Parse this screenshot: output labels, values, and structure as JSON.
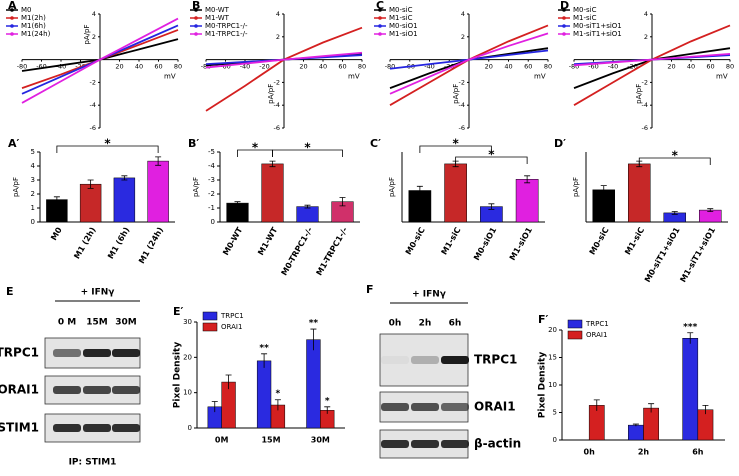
{
  "chart_data": [
    {
      "type": "line",
      "panel": "A",
      "x": [
        -80,
        -40,
        0,
        40,
        80
      ],
      "xlabel": "mV",
      "ylabel": "pA/pF",
      "xlim": [
        -80,
        80
      ],
      "ylim": [
        -6,
        4
      ],
      "xticks": [
        -80,
        -60,
        -40,
        -20,
        20,
        40,
        60,
        80
      ],
      "yticks": [
        4,
        2,
        -2,
        -4,
        -6
      ],
      "legend": "upper left",
      "series": [
        {
          "name": "M0",
          "color": "#000000",
          "values": [
            -1,
            -0.5,
            0,
            0.9,
            1.8
          ]
        },
        {
          "name": "M1(2h)",
          "color": "#d42020",
          "values": [
            -2.5,
            -1.3,
            0,
            1.3,
            2.6
          ]
        },
        {
          "name": "M1(6h)",
          "color": "#2525e0",
          "values": [
            -3,
            -1.5,
            0,
            1.5,
            3
          ]
        },
        {
          "name": "M1(24h)",
          "color": "#e020e0",
          "values": [
            -3.8,
            -1.9,
            0,
            1.8,
            3.6
          ]
        }
      ]
    },
    {
      "type": "line",
      "panel": "B",
      "x": [
        -80,
        -40,
        0,
        40,
        80
      ],
      "xlabel": "mV",
      "ylabel": "pA/pF",
      "xlim": [
        -80,
        80
      ],
      "ylim": [
        -6,
        4
      ],
      "xticks": [
        -80,
        -60,
        -40,
        -20,
        20,
        40,
        60,
        80
      ],
      "yticks": [
        4,
        2,
        -2,
        -4,
        -6
      ],
      "legend": "upper left",
      "series": [
        {
          "name": "M0-WT",
          "color": "#000000",
          "values": [
            -0.5,
            -0.25,
            0,
            0.25,
            0.5
          ]
        },
        {
          "name": "M1-WT",
          "color": "#d42020",
          "values": [
            -4.5,
            -2.3,
            0,
            1.5,
            2.8
          ]
        },
        {
          "name": "M0-TRPC1-/-",
          "color": "#2525e0",
          "values": [
            -0.4,
            -0.2,
            0,
            0.2,
            0.4
          ]
        },
        {
          "name": "M1-TRPC1-/-",
          "color": "#e020e0",
          "values": [
            -0.7,
            -0.35,
            0,
            0.3,
            0.6
          ]
        }
      ]
    },
    {
      "type": "line",
      "panel": "C",
      "x": [
        -80,
        -40,
        0,
        40,
        80
      ],
      "xlabel": "mV",
      "ylabel": "pA/pF",
      "xlim": [
        -80,
        80
      ],
      "ylim": [
        -6,
        4
      ],
      "xticks": [
        -80,
        -60,
        -40,
        -20,
        20,
        40,
        60,
        80
      ],
      "yticks": [
        4,
        2,
        -2,
        -4,
        -6
      ],
      "legend": "upper left",
      "series": [
        {
          "name": "M0-siC",
          "color": "#000000",
          "values": [
            -2.5,
            -1.2,
            0,
            0.5,
            1
          ]
        },
        {
          "name": "M1-siC",
          "color": "#d42020",
          "values": [
            -4,
            -2,
            0,
            1.6,
            3
          ]
        },
        {
          "name": "M0-siO1",
          "color": "#2525e0",
          "values": [
            -0.8,
            -0.4,
            0,
            0.4,
            0.8
          ]
        },
        {
          "name": "M1-siO1",
          "color": "#e020e0",
          "values": [
            -3,
            -1.5,
            0,
            1.2,
            2.3
          ]
        }
      ]
    },
    {
      "type": "line",
      "panel": "D",
      "x": [
        -80,
        -40,
        0,
        40,
        80
      ],
      "xlabel": "mV",
      "ylabel": "pA/pF",
      "xlim": [
        -80,
        80
      ],
      "ylim": [
        -6,
        4
      ],
      "xticks": [
        -80,
        -60,
        -40,
        -20,
        20,
        40,
        60,
        80
      ],
      "yticks": [
        4,
        2,
        -2,
        -4,
        -6
      ],
      "legend": "upper left",
      "series": [
        {
          "name": "M0-siC",
          "color": "#000000",
          "values": [
            -2.5,
            -1.2,
            0,
            0.5,
            1
          ]
        },
        {
          "name": "M1-siC",
          "color": "#d42020",
          "values": [
            -4,
            -2,
            0,
            1.6,
            3
          ]
        },
        {
          "name": "M0-siT1+siO1",
          "color": "#2525e0",
          "values": [
            -0.4,
            -0.2,
            0,
            0.2,
            0.4
          ]
        },
        {
          "name": "M1-siT1+siO1",
          "color": "#e020e0",
          "values": [
            -0.5,
            -0.25,
            0,
            0.25,
            0.5
          ]
        }
      ]
    },
    {
      "type": "bar",
      "panel": "A′",
      "ylabel": "pA/pF",
      "categories": [
        "M0",
        "M1 (2h)",
        "M1 (6h)",
        "M1 (24h)"
      ],
      "values": [
        1.6,
        2.7,
        3.15,
        4.35
      ],
      "errors": [
        0.2,
        0.3,
        0.15,
        0.3
      ],
      "colors": [
        "#000000",
        "#c62828",
        "#2a2ae0",
        "#e020e0"
      ],
      "ylim": [
        0,
        5
      ],
      "yticks": [
        0,
        1,
        2,
        3,
        4,
        5
      ],
      "annotations": [
        "*"
      ]
    },
    {
      "type": "bar",
      "panel": "B′",
      "ylabel": "pA/pF",
      "categories": [
        "M0-WT",
        "M1-WT",
        "M0-TRPC1-/-",
        "M1-TRPC1-/-"
      ],
      "values": [
        -1.35,
        -4.15,
        -1.1,
        -1.45
      ],
      "errors": [
        0.1,
        0.2,
        0.1,
        0.3
      ],
      "colors": [
        "#000000",
        "#c62828",
        "#2a2ae0",
        "#d0306a"
      ],
      "ylim": [
        0,
        -5
      ],
      "yticks": [
        0,
        -1,
        -2,
        -3,
        -4,
        -5
      ],
      "annotations": [
        "*",
        "*"
      ]
    },
    {
      "type": "bar",
      "panel": "C′",
      "ylabel": "pA/pF",
      "categories": [
        "M0-siC",
        "M1-siC",
        "M0-siO1",
        "M1-siO1"
      ],
      "values": [
        -2.25,
        -4.15,
        -1.1,
        -3.05
      ],
      "errors": [
        0.3,
        0.2,
        0.2,
        0.25
      ],
      "colors": [
        "#000000",
        "#c62828",
        "#2a2ae0",
        "#e020e0"
      ],
      "ylim": [
        0,
        -5
      ],
      "annotations": [
        "*",
        "*"
      ]
    },
    {
      "type": "bar",
      "panel": "D′",
      "ylabel": "pA/pF",
      "categories": [
        "M0-siC",
        "M1-siC",
        "M0-siT1+siO1",
        "M1-siT1+siO1"
      ],
      "values": [
        -2.3,
        -4.15,
        -0.65,
        -0.85
      ],
      "errors": [
        0.3,
        0.2,
        0.1,
        0.1
      ],
      "colors": [
        "#000000",
        "#c62828",
        "#2a2ae0",
        "#e020e0"
      ],
      "ylim": [
        0,
        -5
      ],
      "annotations": [
        "*"
      ]
    },
    {
      "type": "blot",
      "panel": "E",
      "treatment": "+ IFNγ",
      "lanes": [
        "0 M",
        "15M",
        "30M"
      ],
      "rows": [
        "TRPC1",
        "ORAI1",
        "STIM1"
      ],
      "footer": "IP: STIM1"
    },
    {
      "type": "grouped",
      "panel": "E′",
      "ylabel": "Pixel Density",
      "categories": [
        "0M",
        "15M",
        "30M"
      ],
      "ylim": [
        0,
        30
      ],
      "yticks": [
        0,
        10,
        20,
        30
      ],
      "legend": "upper left",
      "series": [
        {
          "name": "TRPC1",
          "color": "#2a2ae0",
          "values": [
            6,
            19,
            25
          ],
          "errors": [
            1.5,
            2,
            3
          ],
          "marks": [
            null,
            "**",
            "**"
          ]
        },
        {
          "name": "ORAI1",
          "color": "#d42020",
          "values": [
            13,
            6.5,
            5
          ],
          "errors": [
            2,
            1.5,
            1
          ],
          "marks": [
            null,
            "*",
            "*"
          ]
        }
      ]
    },
    {
      "type": "blot",
      "panel": "F",
      "treatment": "+ IFNγ",
      "lanes": [
        "0h",
        "2h",
        "6h"
      ],
      "rows": [
        "TRPC1",
        "ORAI1",
        "β-actin"
      ]
    },
    {
      "type": "grouped",
      "panel": "F′",
      "ylabel": "Pixel Density",
      "categories": [
        "0h",
        "2h",
        "6h"
      ],
      "ylim": [
        0,
        20
      ],
      "yticks": [
        0,
        5,
        10,
        15,
        20
      ],
      "legend": "upper left",
      "series": [
        {
          "name": "TRPC1",
          "color": "#2a2ae0",
          "values": [
            null,
            2.7,
            18.5
          ],
          "errors": [
            null,
            0.2,
            1
          ],
          "marks": [
            null,
            null,
            "***"
          ]
        },
        {
          "name": "ORAI1",
          "color": "#d42020",
          "values": [
            6.3,
            5.8,
            5.5
          ],
          "errors": [
            1,
            0.8,
            0.8
          ],
          "marks": [
            null,
            null,
            null
          ]
        }
      ]
    }
  ]
}
